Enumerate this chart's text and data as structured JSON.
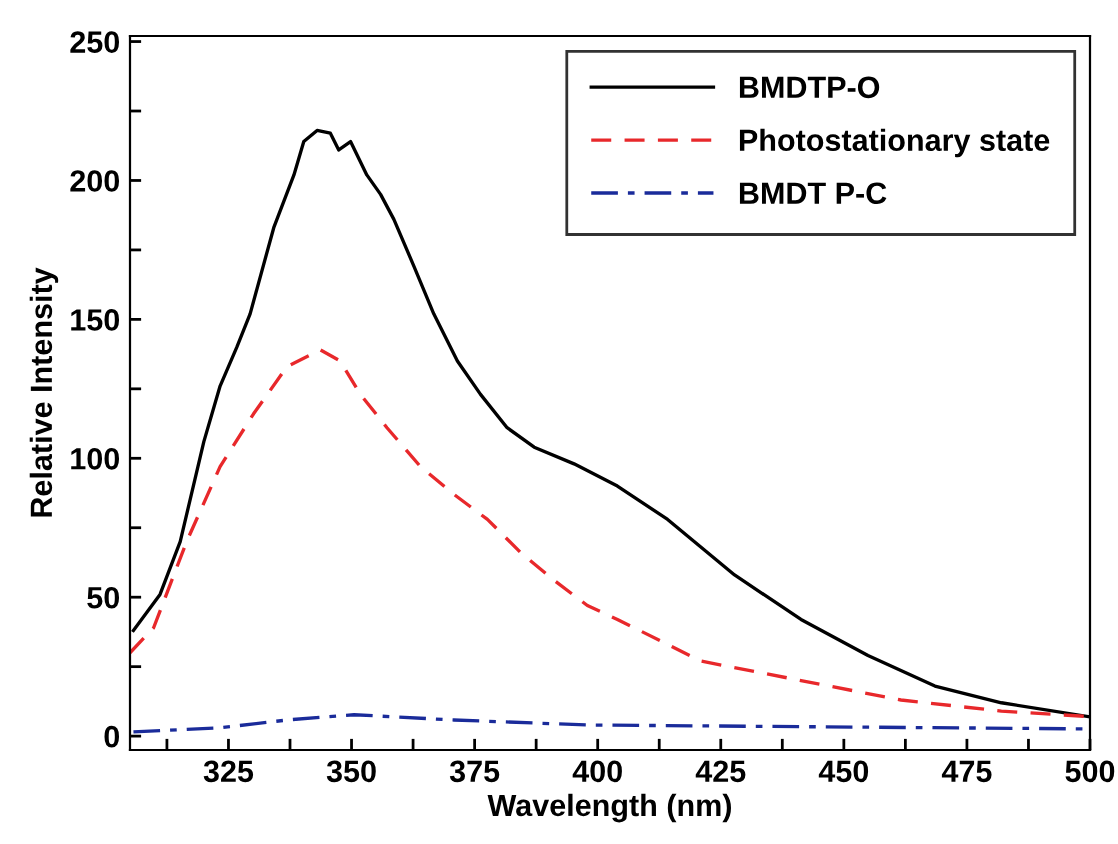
{
  "chart_data": {
    "type": "line",
    "xlabel": "Wavelength (nm)",
    "ylabel": "Relative Intensity",
    "xlim": [
      305,
      500
    ],
    "ylim": [
      -5,
      252
    ],
    "xticks": [
      {
        "value": 312.5,
        "label": null
      },
      325,
      {
        "value": 337.5,
        "label": null
      },
      350,
      {
        "value": 362.5,
        "label": null
      },
      375,
      {
        "value": 387.5,
        "label": null
      },
      400,
      {
        "value": 412.5,
        "label": null
      },
      425,
      {
        "value": 437.5,
        "label": null
      },
      450,
      {
        "value": 462.5,
        "label": null
      },
      475,
      {
        "value": 487.5,
        "label": null
      },
      500
    ],
    "yticks": [
      0,
      {
        "value": 25,
        "label": null
      },
      50,
      {
        "value": 75,
        "label": null
      },
      100,
      {
        "value": 125,
        "label": null
      },
      150,
      {
        "value": 175,
        "label": null
      },
      200,
      {
        "value": 225,
        "label": null
      },
      250
    ],
    "grid": false,
    "legend": "top right",
    "series": [
      {
        "name": "BMDTP-O",
        "color": "#000000",
        "line_style": "solid",
        "x": [
          305.7,
          311.1,
          315.2,
          320,
          323.3,
          326.7,
          329.4,
          334.2,
          338.3,
          340.3,
          343,
          345.7,
          347.4,
          349.8,
          353.1,
          355.9,
          358.6,
          362.7,
          366.7,
          371.5,
          376.2,
          381.6,
          387.1,
          395.2,
          404,
          414.2,
          427.8,
          441.3,
          454.9,
          468.5,
          482,
          499.7
        ],
        "values": [
          38,
          51,
          70,
          106,
          126,
          140,
          152,
          183,
          202,
          214,
          218,
          217,
          211,
          214,
          202,
          195,
          186,
          169,
          152,
          135,
          123,
          111,
          104,
          98,
          90,
          78,
          58,
          42,
          29,
          18,
          12,
          7
        ]
      },
      {
        "name": "Photostationary state",
        "color": "#e8282b",
        "line_style": "dashed",
        "x": [
          305,
          309.8,
          316.5,
          323.3,
          330.1,
          336.9,
          343.7,
          347.7,
          351.8,
          357.2,
          364,
          370.8,
          377.6,
          384.4,
          391.2,
          397.9,
          404,
          421,
          441.3,
          461.6,
          482,
          500
        ],
        "values": [
          30,
          39,
          70,
          97,
          116,
          133,
          139,
          135,
          123,
          111,
          97,
          87,
          78,
          66,
          56,
          47,
          42,
          27,
          20,
          13,
          9,
          7
        ]
      },
      {
        "name": "BMDT P-C",
        "color": "#1a2b9a",
        "line_style": "dashdot",
        "x": [
          305.7,
          323.3,
          336.9,
          350.5,
          370.8,
          397.9,
          441.3,
          499.5
        ],
        "values": [
          1.5,
          3,
          5.8,
          7.7,
          5.8,
          4,
          3.4,
          2.6
        ]
      }
    ]
  }
}
